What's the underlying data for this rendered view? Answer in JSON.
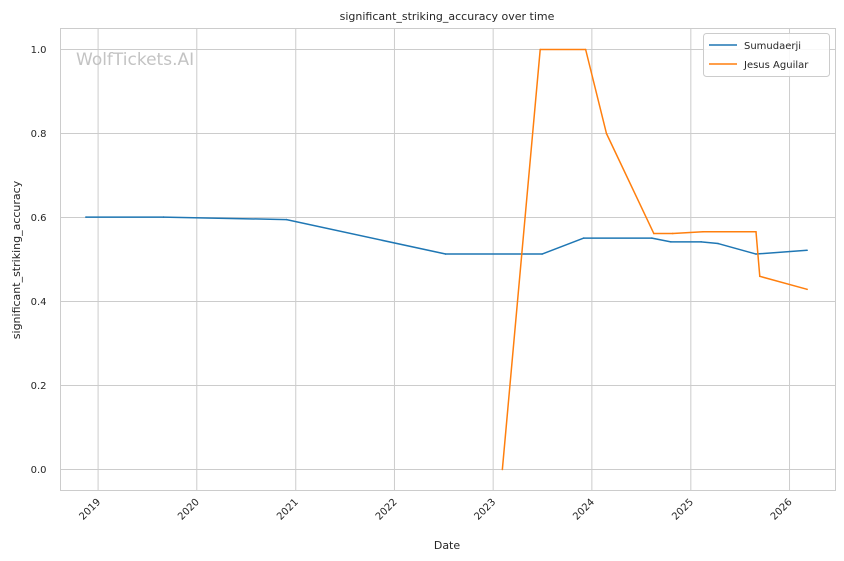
{
  "chart_data": {
    "type": "line",
    "title": "significant_striking_accuracy over time",
    "xlabel": "Date",
    "ylabel": "significant_striking_accuracy",
    "watermark": "WolfTickets.AI",
    "x_ticks": [
      "2019",
      "2020",
      "2021",
      "2022",
      "2023",
      "2024",
      "2025",
      "2026"
    ],
    "y_ticks": [
      "0.0",
      "0.2",
      "0.4",
      "0.6",
      "0.8",
      "1.0"
    ],
    "xlim": [
      "2018-08-15",
      "2026-06-20"
    ],
    "ylim": [
      -0.05,
      1.05
    ],
    "grid": true,
    "legend_position": "top-right",
    "series": [
      {
        "name": "Sumudaerji",
        "color": "#1f77b4",
        "points": [
          {
            "x": "2018-11-17",
            "y": 0.601
          },
          {
            "x": "2019-08-31",
            "y": 0.601
          },
          {
            "x": "2020-11-28",
            "y": 0.595
          },
          {
            "x": "2022-07-09",
            "y": 0.513
          },
          {
            "x": "2023-07-01",
            "y": 0.513
          },
          {
            "x": "2023-12-02",
            "y": 0.551
          },
          {
            "x": "2024-08-10",
            "y": 0.551
          },
          {
            "x": "2024-10-19",
            "y": 0.542
          },
          {
            "x": "2025-02-08",
            "y": 0.542
          },
          {
            "x": "2025-04-12",
            "y": 0.538
          },
          {
            "x": "2025-08-30",
            "y": 0.513
          },
          {
            "x": "2026-03-07",
            "y": 0.522
          }
        ]
      },
      {
        "name": "Jesus Aguilar",
        "color": "#ff7f0e",
        "points": [
          {
            "x": "2023-02-04",
            "y": 0.0
          },
          {
            "x": "2023-06-24",
            "y": 1.0
          },
          {
            "x": "2023-12-09",
            "y": 1.0
          },
          {
            "x": "2024-02-24",
            "y": 0.8
          },
          {
            "x": "2024-08-17",
            "y": 0.562
          },
          {
            "x": "2024-10-26",
            "y": 0.562
          },
          {
            "x": "2025-02-15",
            "y": 0.566
          },
          {
            "x": "2025-08-30",
            "y": 0.566
          },
          {
            "x": "2025-09-13",
            "y": 0.46
          },
          {
            "x": "2026-03-07",
            "y": 0.429
          }
        ]
      }
    ]
  }
}
